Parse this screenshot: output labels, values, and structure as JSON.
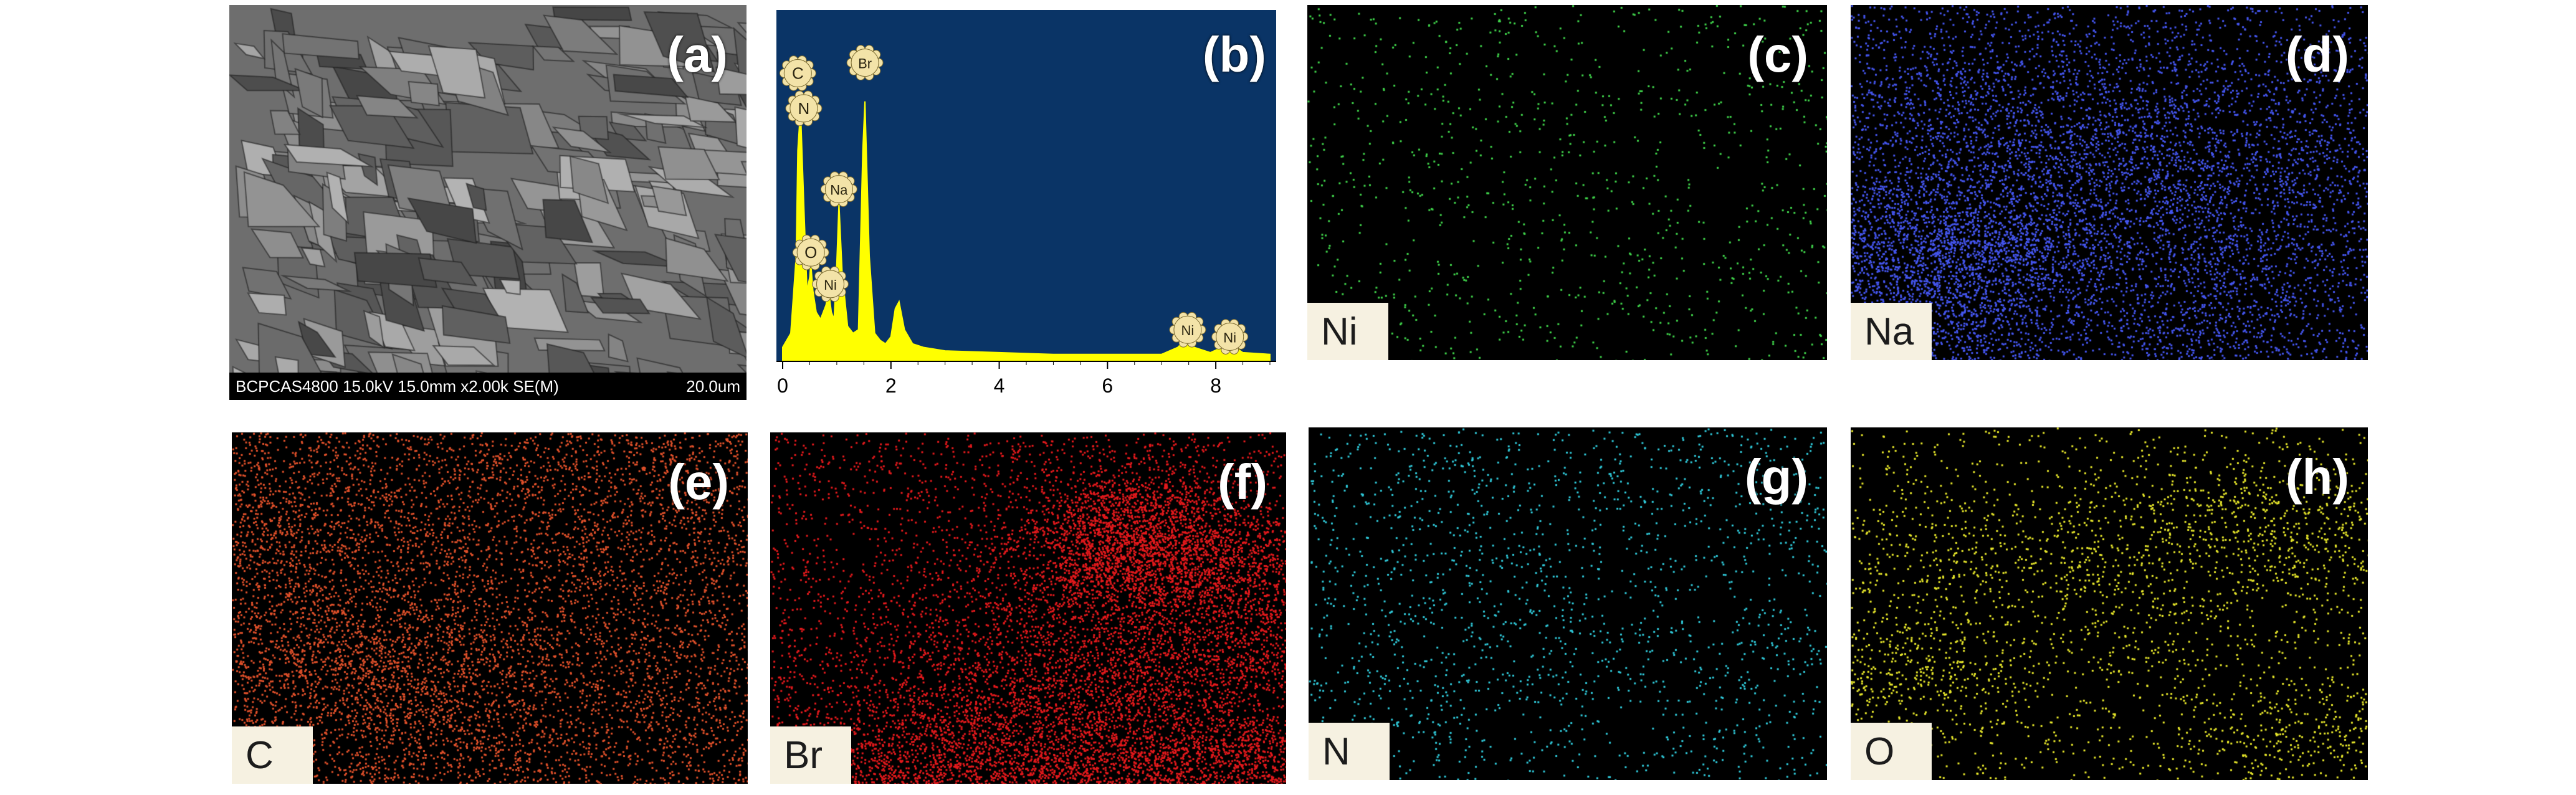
{
  "panels": {
    "a": {
      "letter": "(a)",
      "sem_info": "BCPCAS4800 15.0kV 15.0mm x2.00k SE(M)",
      "scale": "20.0um"
    },
    "b": {
      "letter": "(b)"
    },
    "c": {
      "letter": "(c)",
      "element": "Ni",
      "color": "#3fd24a",
      "count": 900
    },
    "d": {
      "letter": "(d)",
      "element": "Na",
      "color": "#4455ee",
      "count": 9000
    },
    "e": {
      "letter": "(e)",
      "element": "C",
      "color": "#e0502a",
      "count": 7500
    },
    "f": {
      "letter": "(f)",
      "element": "Br",
      "color": "#e4191c",
      "count": 14000
    },
    "g": {
      "letter": "(g)",
      "element": "N",
      "color": "#2fc8d8",
      "count": 1700
    },
    "h": {
      "letter": "(h)",
      "element": "O",
      "color": "#e6e62a",
      "count": 3200
    }
  },
  "chart_data": {
    "type": "line",
    "background": "#0a3466",
    "line_color": "#ffff00",
    "xlim": [
      0,
      9
    ],
    "ylim": [
      0,
      100
    ],
    "x_ticks": [
      "0",
      "2",
      "4",
      "6",
      "8"
    ],
    "series": [
      {
        "x": [
          0.0,
          0.15,
          0.25,
          0.28,
          0.33,
          0.39,
          0.45,
          0.5,
          0.52,
          0.56,
          0.62,
          0.7,
          0.8,
          0.85,
          0.9,
          0.95,
          1.0,
          1.04,
          1.1,
          1.2,
          1.3,
          1.4,
          1.48,
          1.52,
          1.6,
          1.7,
          1.8,
          1.9,
          2.0,
          2.08,
          2.15,
          2.25,
          2.4,
          2.6,
          3.0,
          4.0,
          5.0,
          6.0,
          7.0,
          7.3,
          7.48,
          7.6,
          7.9,
          8.26,
          8.5,
          9.0
        ],
        "y": [
          4,
          8,
          30,
          60,
          72,
          45,
          20,
          24,
          28,
          20,
          14,
          12,
          16,
          20,
          14,
          12,
          28,
          45,
          25,
          10,
          8,
          9,
          60,
          74,
          30,
          8,
          6,
          5,
          7,
          15,
          17,
          9,
          5,
          4,
          3,
          2.5,
          2,
          2,
          2,
          4,
          7,
          4,
          2.5,
          5,
          2.5,
          2
        ]
      }
    ],
    "peak_labels": [
      {
        "label": "C",
        "x": 0.28,
        "y": 82
      },
      {
        "label": "N",
        "x": 0.39,
        "y": 72
      },
      {
        "label": "Br",
        "x": 1.52,
        "y": 85
      },
      {
        "label": "Na",
        "x": 1.04,
        "y": 49
      },
      {
        "label": "O",
        "x": 0.52,
        "y": 31
      },
      {
        "label": "Ni",
        "x": 0.88,
        "y": 22
      },
      {
        "label": "Ni",
        "x": 7.48,
        "y": 9
      },
      {
        "label": "Ni",
        "x": 8.26,
        "y": 7
      }
    ]
  }
}
